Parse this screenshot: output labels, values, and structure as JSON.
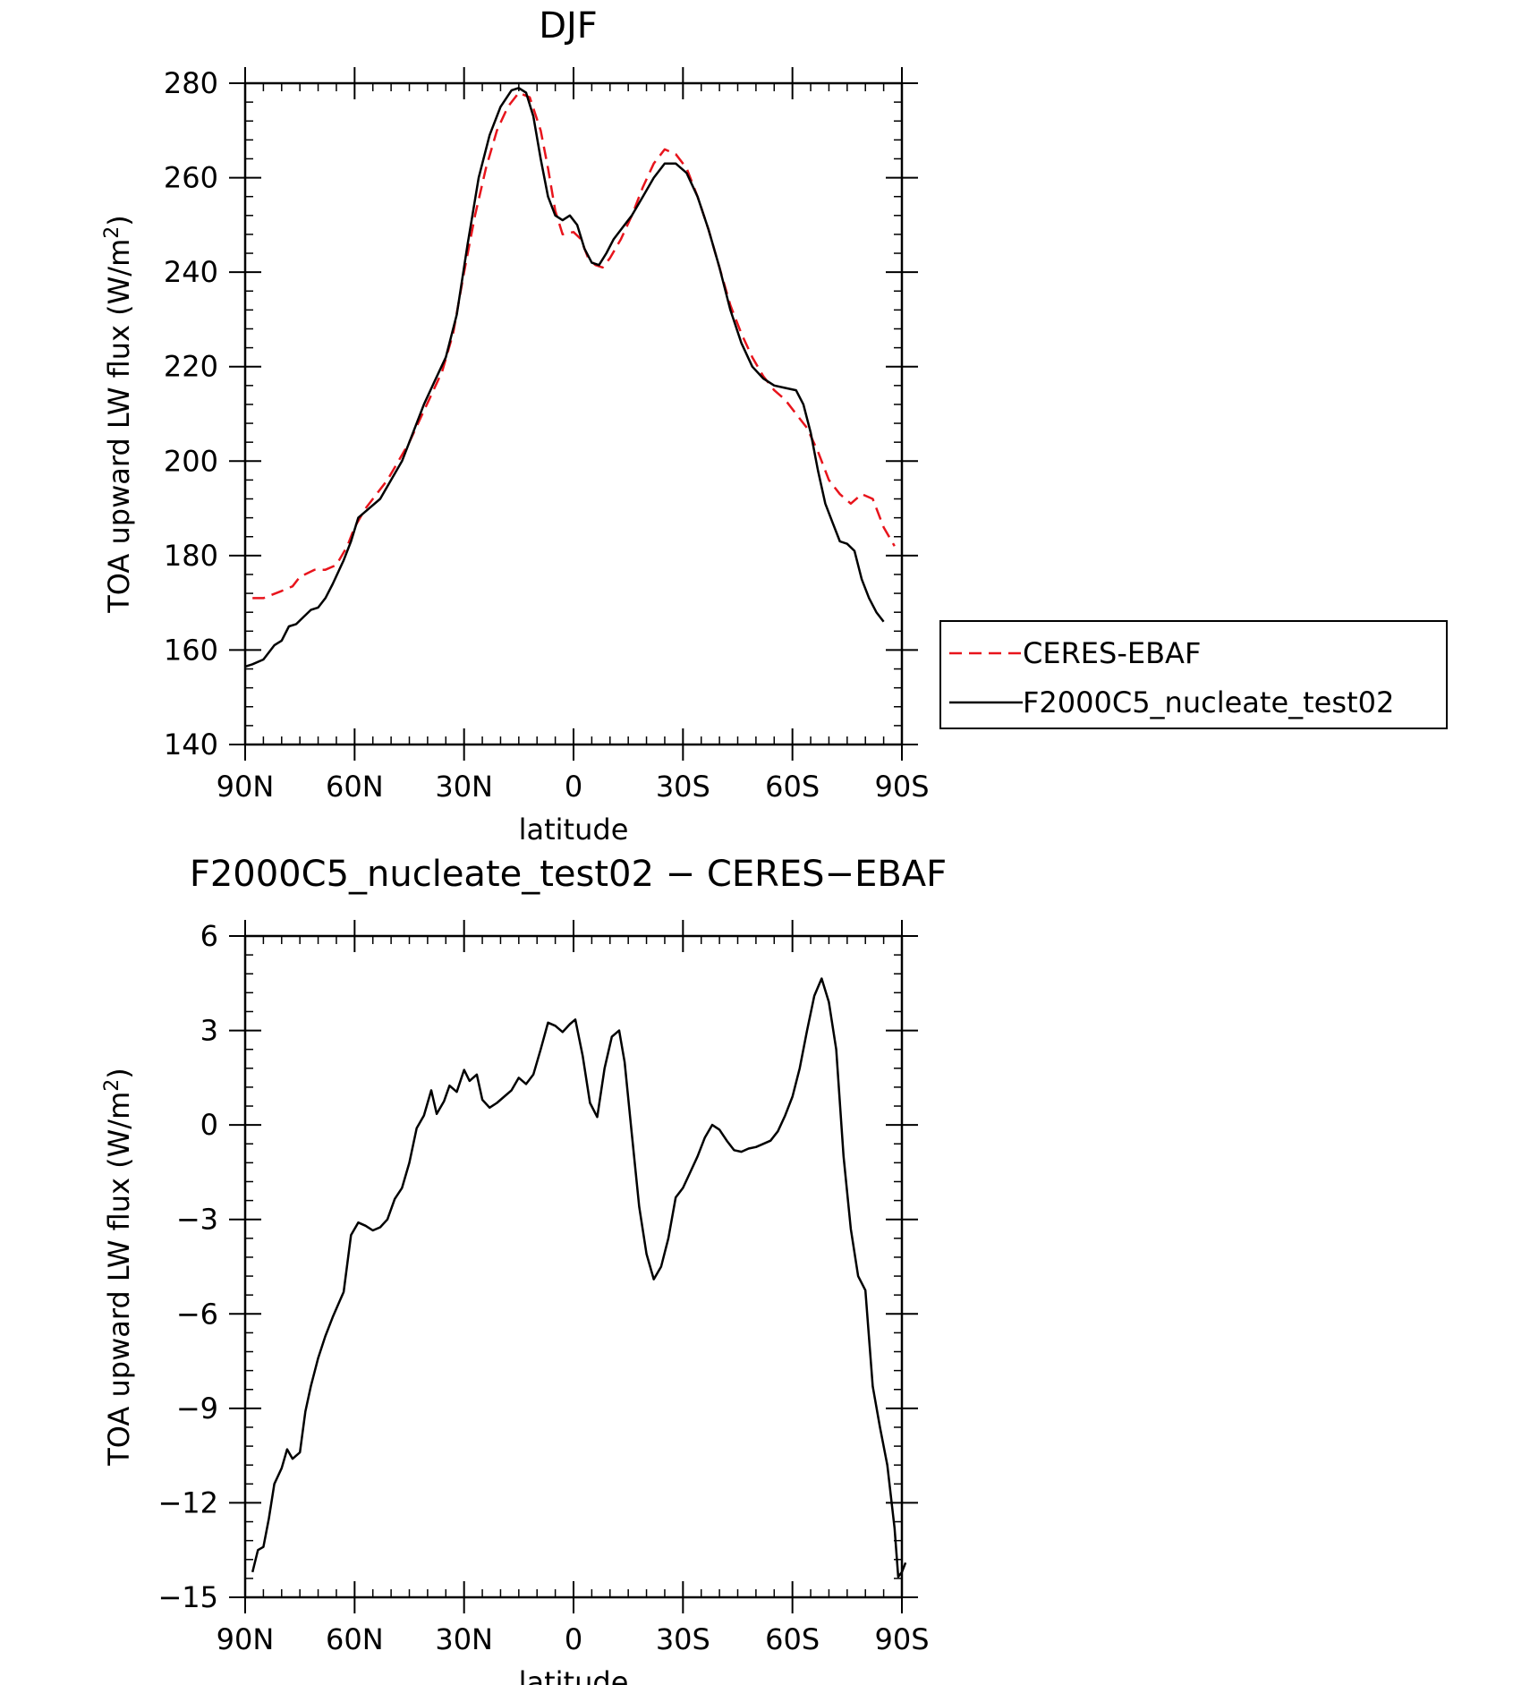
{
  "chart_data": [
    {
      "type": "line",
      "title": "DJF",
      "xlabel": "latitude",
      "ylabel": "TOA upward LW flux (W/m²)",
      "ylabel_main": "TOA upward LW flux (W/m",
      "ylabel_sup": "2",
      "ylabel_close": ")",
      "xlim": [
        90,
        -90
      ],
      "ylim": [
        140,
        280
      ],
      "x_ticks": [
        90,
        60,
        30,
        0,
        -30,
        -60,
        -90
      ],
      "x_tick_labels": [
        "90N",
        "60N",
        "30N",
        "0",
        "30S",
        "60S",
        "90S"
      ],
      "y_ticks": [
        140,
        160,
        180,
        200,
        220,
        240,
        260,
        280
      ],
      "y_tick_labels": [
        "140",
        "160",
        "180",
        "200",
        "220",
        "240",
        "260",
        "280"
      ],
      "legend": {
        "position": "right",
        "entries": [
          "CERES-EBAF",
          "F2000C5_nucleate_test02"
        ]
      },
      "series": [
        {
          "name": "CERES-EBAF",
          "color": "#e8141c",
          "dash": "dashed",
          "points": [
            [
              88,
              171
            ],
            [
              85,
              171
            ],
            [
              80,
              172.5
            ],
            [
              77,
              173.5
            ],
            [
              75,
              175.5
            ],
            [
              71,
              177
            ],
            [
              68,
              177
            ],
            [
              65,
              178
            ],
            [
              62,
              182
            ],
            [
              60,
              186
            ],
            [
              57,
              190
            ],
            [
              54,
              193
            ],
            [
              51,
              196
            ],
            [
              48,
              200
            ],
            [
              45,
              204
            ],
            [
              42,
              209
            ],
            [
              39,
              214
            ],
            [
              36,
              219
            ],
            [
              33,
              227
            ],
            [
              30,
              240
            ],
            [
              27,
              252
            ],
            [
              24,
              262
            ],
            [
              21,
              270
            ],
            [
              18,
              275
            ],
            [
              15,
              278
            ],
            [
              12,
              277
            ],
            [
              9,
              270
            ],
            [
              7,
              262
            ],
            [
              5,
              253
            ],
            [
              3,
              248
            ],
            [
              0,
              248.5
            ],
            [
              -2,
              247
            ],
            [
              -4,
              243
            ],
            [
              -6,
              241.5
            ],
            [
              -8,
              241
            ],
            [
              -10,
              243
            ],
            [
              -13,
              247
            ],
            [
              -16,
              252
            ],
            [
              -19,
              258
            ],
            [
              -22,
              263
            ],
            [
              -25,
              266
            ],
            [
              -28,
              265
            ],
            [
              -31,
              262
            ],
            [
              -34,
              256
            ],
            [
              -37,
              249
            ],
            [
              -40,
              241
            ],
            [
              -43,
              233
            ],
            [
              -46,
              227
            ],
            [
              -49,
              222
            ],
            [
              -52,
              218
            ],
            [
              -55,
              215
            ],
            [
              -58,
              213
            ],
            [
              -61,
              210
            ],
            [
              -64,
              207
            ],
            [
              -67,
              202
            ],
            [
              -70,
              196
            ],
            [
              -73,
              193
            ],
            [
              -76,
              191
            ],
            [
              -79,
              193
            ],
            [
              -82,
              192
            ],
            [
              -85,
              186
            ],
            [
              -88,
              182
            ]
          ]
        },
        {
          "name": "F2000C5_nucleate_test02",
          "color": "#000000",
          "dash": "solid",
          "points": [
            [
              90,
              156.5
            ],
            [
              88,
              157
            ],
            [
              85,
              158
            ],
            [
              82,
              161
            ],
            [
              80,
              162
            ],
            [
              78,
              165
            ],
            [
              76,
              165.5
            ],
            [
              74,
              167
            ],
            [
              72,
              168.5
            ],
            [
              70,
              169
            ],
            [
              68,
              171
            ],
            [
              66,
              174
            ],
            [
              63,
              179
            ],
            [
              61,
              183
            ],
            [
              59,
              188
            ],
            [
              56,
              190
            ],
            [
              53,
              192
            ],
            [
              50,
              196
            ],
            [
              47,
              200
            ],
            [
              44,
              206
            ],
            [
              41,
              212
            ],
            [
              38,
              217
            ],
            [
              35,
              222
            ],
            [
              32,
              231
            ],
            [
              29,
              246
            ],
            [
              26,
              260
            ],
            [
              23,
              269
            ],
            [
              20,
              275
            ],
            [
              17,
              278.5
            ],
            [
              15,
              279
            ],
            [
              13,
              278
            ],
            [
              11,
              273
            ],
            [
              9,
              264
            ],
            [
              7,
              256
            ],
            [
              5,
              252
            ],
            [
              3,
              251
            ],
            [
              1,
              252
            ],
            [
              -1,
              250
            ],
            [
              -3,
              245
            ],
            [
              -5,
              242
            ],
            [
              -7,
              241.5
            ],
            [
              -9,
              244
            ],
            [
              -11,
              247
            ],
            [
              -13,
              249
            ],
            [
              -16,
              252
            ],
            [
              -19,
              256
            ],
            [
              -22,
              260
            ],
            [
              -25,
              263
            ],
            [
              -28,
              263
            ],
            [
              -31,
              261
            ],
            [
              -34,
              256
            ],
            [
              -37,
              249
            ],
            [
              -40,
              241
            ],
            [
              -43,
              232
            ],
            [
              -46,
              225
            ],
            [
              -49,
              220
            ],
            [
              -52,
              217.5
            ],
            [
              -55,
              216
            ],
            [
              -58,
              215.5
            ],
            [
              -61,
              215
            ],
            [
              -63,
              212
            ],
            [
              -65,
              206
            ],
            [
              -67,
              198
            ],
            [
              -69,
              191
            ],
            [
              -71,
              187
            ],
            [
              -73,
              183
            ],
            [
              -75,
              182.5
            ],
            [
              -77,
              181
            ],
            [
              -79,
              175
            ],
            [
              -81,
              171
            ],
            [
              -83,
              168
            ],
            [
              -85,
              166
            ]
          ]
        }
      ]
    },
    {
      "type": "line",
      "title": "F2000C5_nucleate_test02 − CERES−EBAF",
      "xlabel": "latitude",
      "ylabel": "TOA upward LW flux (W/m²)",
      "ylabel_main": "TOA upward LW flux (W/m",
      "ylabel_sup": "2",
      "ylabel_close": ")",
      "xlim": [
        90,
        -90
      ],
      "ylim": [
        -15,
        6
      ],
      "x_ticks": [
        90,
        60,
        30,
        0,
        -30,
        -60,
        -90
      ],
      "x_tick_labels": [
        "90N",
        "60N",
        "30N",
        "0",
        "30S",
        "60S",
        "90S"
      ],
      "y_ticks": [
        -15,
        -12,
        -9,
        -6,
        -3,
        0,
        3,
        6
      ],
      "y_tick_labels": [
        "−15",
        "−12",
        "−9",
        "−6",
        "−3",
        "0",
        "3",
        "6"
      ],
      "series": [
        {
          "color": "#000000",
          "dash": "solid",
          "points": [
            [
              88,
              -14.2
            ],
            [
              86.5,
              -13.5
            ],
            [
              85,
              -13.4
            ],
            [
              83.5,
              -12.5
            ],
            [
              82,
              -11.4
            ],
            [
              80,
              -10.9
            ],
            [
              78.5,
              -10.3
            ],
            [
              77,
              -10.6
            ],
            [
              75,
              -10.4
            ],
            [
              73.5,
              -9.1
            ],
            [
              72,
              -8.3
            ],
            [
              70,
              -7.4
            ],
            [
              68,
              -6.7
            ],
            [
              66,
              -6.1
            ],
            [
              63,
              -5.3
            ],
            [
              61,
              -3.5
            ],
            [
              59,
              -3.1
            ],
            [
              57,
              -3.2
            ],
            [
              55,
              -3.35
            ],
            [
              53,
              -3.25
            ],
            [
              51,
              -3.0
            ],
            [
              49,
              -2.35
            ],
            [
              47,
              -2.0
            ],
            [
              45,
              -1.2
            ],
            [
              43,
              -0.1
            ],
            [
              41,
              0.3
            ],
            [
              39,
              1.1
            ],
            [
              37.5,
              0.35
            ],
            [
              35.5,
              0.75
            ],
            [
              34,
              1.25
            ],
            [
              32,
              1.05
            ],
            [
              30,
              1.75
            ],
            [
              28.5,
              1.4
            ],
            [
              26.5,
              1.6
            ],
            [
              25,
              0.8
            ],
            [
              23,
              0.55
            ],
            [
              21,
              0.7
            ],
            [
              19,
              0.9
            ],
            [
              17,
              1.1
            ],
            [
              15,
              1.5
            ],
            [
              13,
              1.3
            ],
            [
              11,
              1.6
            ],
            [
              9,
              2.4
            ],
            [
              7,
              3.25
            ],
            [
              5,
              3.15
            ],
            [
              3,
              2.95
            ],
            [
              1,
              3.2
            ],
            [
              -0.5,
              3.35
            ],
            [
              -2.5,
              2.2
            ],
            [
              -4.5,
              0.7
            ],
            [
              -6.5,
              0.25
            ],
            [
              -8.5,
              1.8
            ],
            [
              -10.5,
              2.8
            ],
            [
              -12.5,
              3.0
            ],
            [
              -14,
              2.0
            ],
            [
              -16,
              -0.3
            ],
            [
              -18,
              -2.6
            ],
            [
              -20,
              -4.1
            ],
            [
              -22,
              -4.9
            ],
            [
              -24,
              -4.5
            ],
            [
              -26,
              -3.6
            ],
            [
              -28,
              -2.3
            ],
            [
              -30,
              -2.0
            ],
            [
              -32,
              -1.5
            ],
            [
              -34,
              -1.0
            ],
            [
              -36,
              -0.4
            ],
            [
              -38,
              0.0
            ],
            [
              -40,
              -0.15
            ],
            [
              -42,
              -0.5
            ],
            [
              -44,
              -0.8
            ],
            [
              -46,
              -0.85
            ],
            [
              -48,
              -0.75
            ],
            [
              -50,
              -0.7
            ],
            [
              -52,
              -0.6
            ],
            [
              -54,
              -0.5
            ],
            [
              -56,
              -0.2
            ],
            [
              -58,
              0.3
            ],
            [
              -60,
              0.9
            ],
            [
              -62,
              1.8
            ],
            [
              -64,
              3.0
            ],
            [
              -66,
              4.1
            ],
            [
              -68,
              4.65
            ],
            [
              -70,
              3.9
            ],
            [
              -72,
              2.4
            ],
            [
              -74,
              -1.0
            ],
            [
              -76,
              -3.3
            ],
            [
              -78,
              -4.8
            ],
            [
              -80,
              -5.25
            ],
            [
              -82,
              -8.3
            ],
            [
              -84,
              -9.6
            ],
            [
              -86,
              -10.8
            ],
            [
              -88,
              -12.8
            ],
            [
              -89,
              -14.35
            ],
            [
              -90,
              -14.2
            ],
            [
              -91,
              -13.9
            ]
          ]
        }
      ]
    }
  ]
}
